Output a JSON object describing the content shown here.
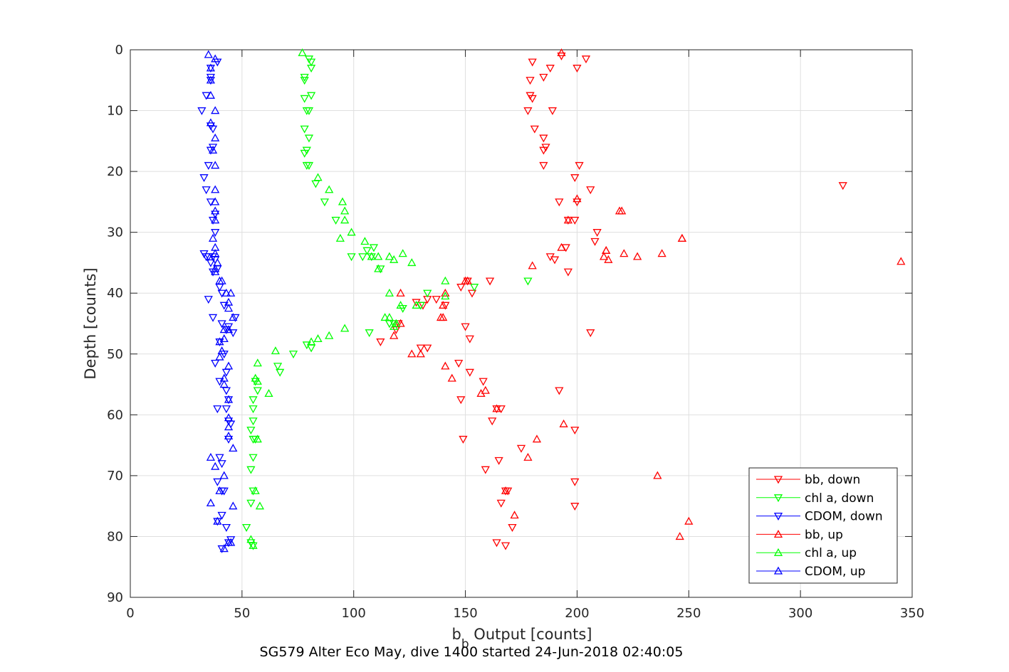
{
  "chart_data": {
    "type": "scatter",
    "xlabel_main": "b",
    "xlabel_sub": "b",
    "xlabel_rest": " Output [counts]",
    "ylabel": "Depth [counts]",
    "caption": "SG579 Alter Eco May, dive 1400 started 24-Jun-2018 02:40:05",
    "xlim": [
      0,
      350
    ],
    "ylim": [
      0,
      90
    ],
    "y_reversed": true,
    "grid": true,
    "legend_placement": "bottom-right",
    "x_ticks": [
      "0",
      "50",
      "100",
      "150",
      "200",
      "250",
      "300",
      "350"
    ],
    "y_ticks": [
      "0",
      "10",
      "20",
      "30",
      "40",
      "50",
      "60",
      "70",
      "80",
      "90"
    ],
    "series": [
      {
        "name": "bb, down",
        "color": "#ff0000",
        "marker": "triangle-down",
        "points": [
          [
            193,
            1
          ],
          [
            204,
            1.5
          ],
          [
            180,
            2
          ],
          [
            200,
            3
          ],
          [
            188,
            3
          ],
          [
            185,
            4.5
          ],
          [
            179,
            5
          ],
          [
            179,
            7.5
          ],
          [
            180,
            8
          ],
          [
            178,
            10
          ],
          [
            189,
            10
          ],
          [
            181,
            13
          ],
          [
            185,
            14.5
          ],
          [
            185,
            16.5
          ],
          [
            186,
            16
          ],
          [
            185,
            19
          ],
          [
            201,
            19
          ],
          [
            199,
            21
          ],
          [
            319,
            22.3
          ],
          [
            206,
            23
          ],
          [
            192,
            25
          ],
          [
            200,
            25
          ],
          [
            196,
            28
          ],
          [
            199,
            28
          ],
          [
            209,
            30
          ],
          [
            208,
            31.5
          ],
          [
            195,
            32.5
          ],
          [
            188,
            34
          ],
          [
            190,
            34.5
          ],
          [
            196,
            36.5
          ],
          [
            161,
            38
          ],
          [
            151,
            38
          ],
          [
            148,
            39
          ],
          [
            153,
            40
          ],
          [
            133,
            41
          ],
          [
            137,
            41
          ],
          [
            131,
            42
          ],
          [
            128,
            41.5
          ],
          [
            120,
            45
          ],
          [
            119,
            46
          ],
          [
            141,
            42
          ],
          [
            112,
            48
          ],
          [
            130,
            49
          ],
          [
            133,
            49
          ],
          [
            147,
            51.5
          ],
          [
            152,
            53
          ],
          [
            158,
            54.5
          ],
          [
            148,
            57.5
          ],
          [
            164,
            59
          ],
          [
            166,
            59
          ],
          [
            162,
            61
          ],
          [
            199,
            62.5
          ],
          [
            149,
            64
          ],
          [
            175,
            65.5
          ],
          [
            165,
            67.5
          ],
          [
            159,
            69
          ],
          [
            168,
            72.5
          ],
          [
            169,
            72.5
          ],
          [
            166,
            74.5
          ],
          [
            171,
            78.5
          ],
          [
            164,
            81
          ],
          [
            168,
            81.5
          ],
          [
            192,
            56
          ],
          [
            199,
            71
          ],
          [
            199,
            75
          ],
          [
            206,
            46.5
          ],
          [
            150,
            45.5
          ],
          [
            152,
            47.5
          ]
        ]
      },
      {
        "name": "chl a, down",
        "color": "#00ff00",
        "marker": "triangle-down",
        "points": [
          [
            80,
            1.5
          ],
          [
            81,
            2
          ],
          [
            81,
            3
          ],
          [
            78,
            4.5
          ],
          [
            78,
            5
          ],
          [
            81,
            7.5
          ],
          [
            78,
            8
          ],
          [
            80,
            10
          ],
          [
            79,
            10
          ],
          [
            78,
            13
          ],
          [
            80,
            14.5
          ],
          [
            79,
            16.5
          ],
          [
            78,
            17
          ],
          [
            79,
            19
          ],
          [
            80,
            19
          ],
          [
            83,
            22
          ],
          [
            87,
            25
          ],
          [
            92,
            28
          ],
          [
            99,
            34
          ],
          [
            104,
            34
          ],
          [
            106,
            33
          ],
          [
            109,
            32.5
          ],
          [
            108,
            34
          ],
          [
            112,
            36
          ],
          [
            178,
            38
          ],
          [
            154,
            39
          ],
          [
            133,
            40
          ],
          [
            130,
            42
          ],
          [
            122,
            42.5
          ],
          [
            118,
            45
          ],
          [
            116,
            45
          ],
          [
            107,
            46.5
          ],
          [
            81,
            49
          ],
          [
            79,
            48.5
          ],
          [
            73,
            50
          ],
          [
            66,
            52
          ],
          [
            67,
            53
          ],
          [
            56,
            54.5
          ],
          [
            57,
            56
          ],
          [
            55,
            57.5
          ],
          [
            55,
            59
          ],
          [
            55,
            61
          ],
          [
            54,
            62.5
          ],
          [
            55,
            64
          ],
          [
            56,
            64
          ],
          [
            55,
            67
          ],
          [
            54,
            69
          ],
          [
            55,
            72.5
          ],
          [
            54,
            74.5
          ],
          [
            52,
            78.5
          ],
          [
            54,
            81
          ],
          [
            55,
            81.5
          ]
        ]
      },
      {
        "name": "CDOM, down",
        "color": "#0000ff",
        "marker": "triangle-down",
        "points": [
          [
            39,
            2
          ],
          [
            36,
            3
          ],
          [
            36,
            4.5
          ],
          [
            36,
            5
          ],
          [
            34,
            7.5
          ],
          [
            32,
            10
          ],
          [
            36,
            12.5
          ],
          [
            37,
            13
          ],
          [
            36,
            16.5
          ],
          [
            37,
            16
          ],
          [
            35,
            19
          ],
          [
            33,
            21
          ],
          [
            34,
            23
          ],
          [
            36,
            25
          ],
          [
            38,
            27
          ],
          [
            37,
            28
          ],
          [
            38,
            30
          ],
          [
            34,
            34
          ],
          [
            33,
            33.5
          ],
          [
            35,
            34
          ],
          [
            37,
            34
          ],
          [
            38,
            34.5
          ],
          [
            36,
            35
          ],
          [
            39,
            36
          ],
          [
            37,
            36.5
          ],
          [
            40,
            39
          ],
          [
            35,
            41
          ],
          [
            41,
            40
          ],
          [
            42,
            42
          ],
          [
            37,
            44
          ],
          [
            41,
            45
          ],
          [
            40,
            48
          ],
          [
            42,
            50
          ],
          [
            38,
            51.5
          ],
          [
            43,
            53
          ],
          [
            40,
            54.5
          ],
          [
            43,
            56
          ],
          [
            44,
            57.5
          ],
          [
            39,
            59
          ],
          [
            43,
            59
          ],
          [
            44,
            61
          ],
          [
            45,
            61.5
          ],
          [
            44,
            64
          ],
          [
            40,
            67
          ],
          [
            41,
            68
          ],
          [
            39,
            71
          ],
          [
            42,
            72.5
          ],
          [
            41,
            72.5
          ],
          [
            41,
            76.5
          ],
          [
            39,
            77.5
          ],
          [
            43,
            78.5
          ],
          [
            41,
            82
          ],
          [
            44,
            81
          ],
          [
            45,
            80.5
          ],
          [
            43,
            46
          ],
          [
            46,
            46.5
          ],
          [
            44,
            45.5
          ],
          [
            47,
            44
          ]
        ]
      },
      {
        "name": "bb, up",
        "color": "#ff0000",
        "marker": "triangle-up",
        "points": [
          [
            193,
            0.5
          ],
          [
            220,
            26.5
          ],
          [
            247,
            31
          ],
          [
            213,
            33
          ],
          [
            212,
            34
          ],
          [
            214,
            34.5
          ],
          [
            221,
            33.5
          ],
          [
            227,
            34
          ],
          [
            238,
            33.5
          ],
          [
            345,
            34.8
          ],
          [
            193,
            32.5
          ],
          [
            180,
            35.5
          ],
          [
            151,
            38
          ],
          [
            150,
            38
          ],
          [
            141,
            40
          ],
          [
            121,
            40
          ],
          [
            140,
            42
          ],
          [
            140,
            44
          ],
          [
            139,
            44
          ],
          [
            121,
            45
          ],
          [
            118,
            47
          ],
          [
            126,
            50
          ],
          [
            130,
            50
          ],
          [
            141,
            52
          ],
          [
            144,
            54
          ],
          [
            159,
            56
          ],
          [
            157,
            56.5
          ],
          [
            164,
            59
          ],
          [
            194,
            61.5
          ],
          [
            182,
            64
          ],
          [
            178,
            67
          ],
          [
            168,
            72.5
          ],
          [
            236,
            70
          ],
          [
            172,
            76.5
          ],
          [
            250,
            77.5
          ],
          [
            246,
            80
          ],
          [
            219,
            26.5
          ],
          [
            247,
            31
          ],
          [
            200,
            24.5
          ],
          [
            196,
            28
          ],
          [
            213,
            33
          ]
        ]
      },
      {
        "name": "chl a, up",
        "color": "#00ff00",
        "marker": "triangle-up",
        "points": [
          [
            77,
            0.5
          ],
          [
            84,
            21
          ],
          [
            89,
            23
          ],
          [
            95,
            25
          ],
          [
            96,
            26.5
          ],
          [
            96,
            28
          ],
          [
            99,
            30
          ],
          [
            94,
            31
          ],
          [
            105,
            31.5
          ],
          [
            108,
            34
          ],
          [
            111,
            34
          ],
          [
            116,
            34
          ],
          [
            122,
            33.5
          ],
          [
            118,
            34.5
          ],
          [
            126,
            35
          ],
          [
            111,
            36
          ],
          [
            141,
            38
          ],
          [
            141,
            40.5
          ],
          [
            116,
            40
          ],
          [
            128,
            42
          ],
          [
            121,
            42
          ],
          [
            114,
            44
          ],
          [
            116,
            44
          ],
          [
            119,
            45
          ],
          [
            118,
            45.5
          ],
          [
            96,
            45.8
          ],
          [
            89,
            47
          ],
          [
            84,
            47.5
          ],
          [
            81,
            48
          ],
          [
            65,
            49.5
          ],
          [
            57,
            51.5
          ],
          [
            56,
            54
          ],
          [
            62,
            56.5
          ],
          [
            57,
            54.5
          ],
          [
            57,
            64
          ],
          [
            58,
            75
          ],
          [
            54,
            80.5
          ],
          [
            55,
            81.5
          ],
          [
            56,
            72.5
          ]
        ]
      },
      {
        "name": "CDOM, up",
        "color": "#0000ff",
        "marker": "triangle-up",
        "points": [
          [
            35,
            0.8
          ],
          [
            38,
            1.5
          ],
          [
            36,
            3
          ],
          [
            36,
            5
          ],
          [
            36,
            7.5
          ],
          [
            38,
            10
          ],
          [
            36,
            12
          ],
          [
            38,
            14.5
          ],
          [
            37,
            16.5
          ],
          [
            38,
            19
          ],
          [
            38,
            23
          ],
          [
            38,
            25
          ],
          [
            38,
            26.5
          ],
          [
            38,
            28
          ],
          [
            37,
            31
          ],
          [
            38,
            32.5
          ],
          [
            38,
            33.5
          ],
          [
            39,
            35
          ],
          [
            38,
            36
          ],
          [
            38,
            36.5
          ],
          [
            40,
            38
          ],
          [
            41,
            38
          ],
          [
            43,
            40
          ],
          [
            45,
            40
          ],
          [
            44,
            41.5
          ],
          [
            44,
            42.5
          ],
          [
            46,
            44
          ],
          [
            42,
            46
          ],
          [
            44,
            46
          ],
          [
            42,
            47.5
          ],
          [
            40,
            48
          ],
          [
            41,
            49.5
          ],
          [
            40,
            50.5
          ],
          [
            44,
            52
          ],
          [
            42,
            54
          ],
          [
            42,
            55
          ],
          [
            44,
            57.5
          ],
          [
            44,
            60.5
          ],
          [
            44,
            62
          ],
          [
            44,
            63.5
          ],
          [
            46,
            65.5
          ],
          [
            36,
            67
          ],
          [
            42,
            70
          ],
          [
            40,
            72.5
          ],
          [
            46,
            75
          ],
          [
            36,
            74.5
          ],
          [
            39,
            77.5
          ],
          [
            44,
            81
          ],
          [
            42,
            82
          ],
          [
            38,
            68.5
          ],
          [
            45,
            81
          ]
        ]
      }
    ]
  }
}
